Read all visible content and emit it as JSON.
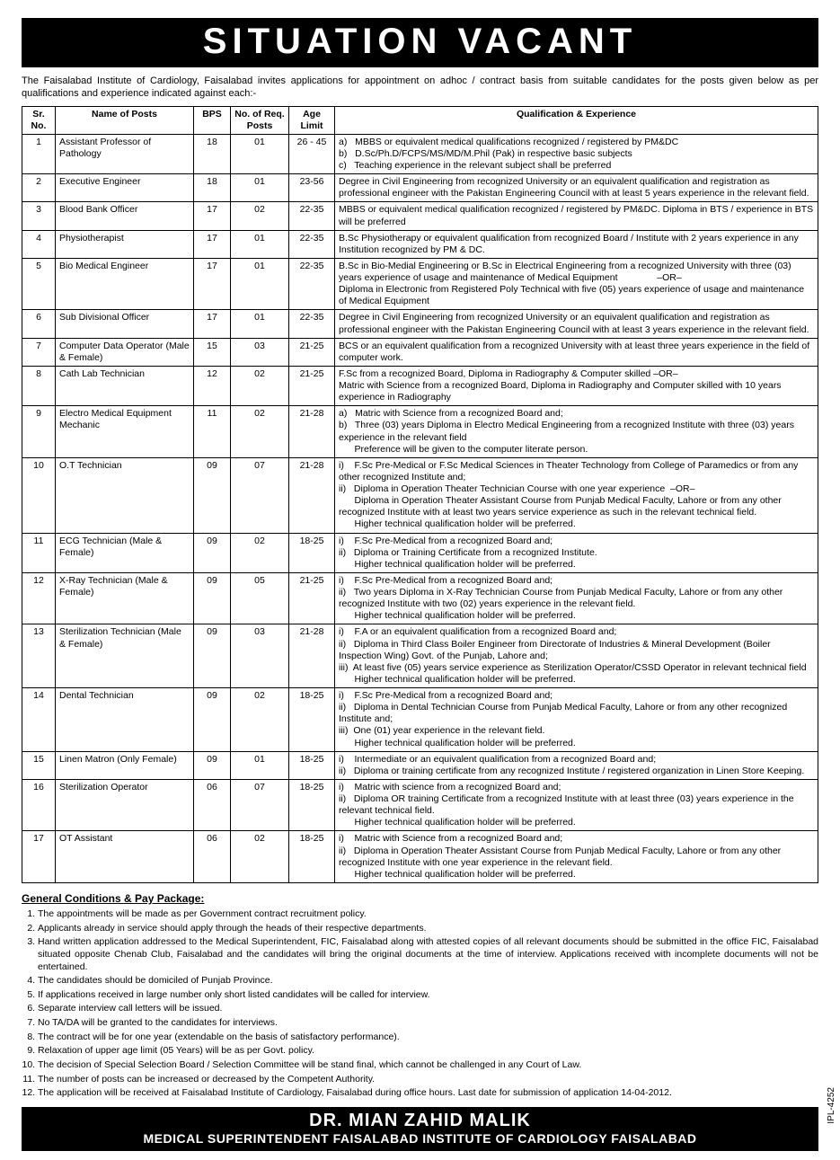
{
  "title": "SITUATION VACANT",
  "intro": "The Faisalabad Institute of Cardiology, Faisalabad invites applications for appointment on adhoc / contract basis from suitable candidates for the posts given below as per qualifications and experience indicated against each:-",
  "headers": {
    "sr": "Sr. No.",
    "name": "Name of Posts",
    "bps": "BPS",
    "req": "No. of Req. Posts",
    "age": "Age Limit",
    "qual": "Qualification & Experience"
  },
  "rows": [
    {
      "sr": "1",
      "name": "Assistant Professor of Pathology",
      "bps": "18",
      "req": "01",
      "age": "26 - 45",
      "qual": "a)   MBBS or equivalent medical qualifications recognized / registered by PM&DC\nb)   D.Sc/Ph.D/FCPS/MS/MD/M.Phil (Pak) in respective basic subjects\nc)   Teaching experience in the relevant subject shall be preferred"
    },
    {
      "sr": "2",
      "name": "Executive Engineer",
      "bps": "18",
      "req": "01",
      "age": "23-56",
      "qual": "Degree in Civil Engineering from recognized University or an equivalent qualification and registration as professional engineer with the Pakistan Engineering Council with at least 5 years experience in the relevant field."
    },
    {
      "sr": "3",
      "name": "Blood Bank Officer",
      "bps": "17",
      "req": "02",
      "age": "22-35",
      "qual": "MBBS or equivalent medical qualification recognized / registered by PM&DC. Diploma in BTS / experience in BTS will be preferred"
    },
    {
      "sr": "4",
      "name": "Physiotherapist",
      "bps": "17",
      "req": "01",
      "age": "22-35",
      "qual": "B.Sc Physiotherapy or equivalent qualification from recognized Board / Institute with 2 years experience in any Institution recognized by PM & DC."
    },
    {
      "sr": "5",
      "name": "Bio Medical Engineer",
      "bps": "17",
      "req": "01",
      "age": "22-35",
      "qual": "B.Sc in Bio-Medial Engineering or B.Sc in Electrical Engineering from a recognized University with three (03) years experience of usage and maintenance of Medical Equipment               –OR–\nDiploma in Electronic from Registered Poly Technical with five (05) years experience of usage and maintenance of Medical Equipment"
    },
    {
      "sr": "6",
      "name": "Sub Divisional Officer",
      "bps": "17",
      "req": "01",
      "age": "22-35",
      "qual": "Degree in Civil Engineering from recognized University or an equivalent qualification and registration as professional engineer with the Pakistan Engineering Council with at least 3 years experience in the relevant field."
    },
    {
      "sr": "7",
      "name": "Computer Data Operator (Male & Female)",
      "bps": "15",
      "req": "03",
      "age": "21-25",
      "qual": "BCS or an equivalent qualification from a recognized University with at least three years experience in the field of computer work."
    },
    {
      "sr": "8",
      "name": "Cath Lab Technician",
      "bps": "12",
      "req": "02",
      "age": "21-25",
      "qual": "F.Sc from a recognized Board, Diploma in Radiography & Computer skilled –OR–\nMatric with Science from a recognized Board, Diploma in Radiography and Computer skilled with 10 years experience in Radiography"
    },
    {
      "sr": "9",
      "name": "Electro Medical Equipment Mechanic",
      "bps": "11",
      "req": "02",
      "age": "21-28",
      "qual": "a)   Matric with Science from a recognized Board and;\nb)   Three (03) years Diploma in Electro Medical Engineering from a recognized Institute with three (03) years experience in the relevant field\n      Preference will be given to the computer literate person."
    },
    {
      "sr": "10",
      "name": "O.T Technician",
      "bps": "09",
      "req": "07",
      "age": "21-28",
      "qual": "i)    F.Sc Pre-Medical or F.Sc Medical Sciences in Theater Technology from College of Paramedics or from any other recognized Institute and;\nii)   Diploma in Operation Theater Technician Course with one year experience  –OR–\n      Diploma in Operation Theater Assistant Course from Punjab Medical Faculty, Lahore or from any other recognized Institute with at least two years service experience as such in the relevant technical field.\n      Higher technical qualification holder will be preferred."
    },
    {
      "sr": "11",
      "name": "ECG Technician (Male & Female)",
      "bps": "09",
      "req": "02",
      "age": "18-25",
      "qual": "i)    F.Sc Pre-Medical from a recognized Board and;\nii)   Diploma or Training Certificate from a recognized Institute.\n      Higher technical qualification holder will be preferred."
    },
    {
      "sr": "12",
      "name": "X-Ray Technician (Male & Female)",
      "bps": "09",
      "req": "05",
      "age": "21-25",
      "qual": "i)    F.Sc Pre-Medical from a recognized Board and;\nii)   Two years Diploma in X-Ray Technician Course from Punjab Medical Faculty, Lahore or from any other recognized Institute with two (02) years experience in the relevant field.\n      Higher technical qualification holder will be preferred."
    },
    {
      "sr": "13",
      "name": "Sterilization Technician (Male & Female)",
      "bps": "09",
      "req": "03",
      "age": "21-28",
      "qual": "i)    F.A or an equivalent qualification from a recognized Board and;\nii)   Diploma in Third Class Boiler Engineer from Directorate of Industries & Mineral Development (Boiler Inspection Wing) Govt. of the Punjab, Lahore and;\niii)  At least five (05) years service experience as Sterilization Operator/CSSD Operator in relevant technical field\n      Higher technical qualification holder will be preferred."
    },
    {
      "sr": "14",
      "name": "Dental Technician",
      "bps": "09",
      "req": "02",
      "age": "18-25",
      "qual": "i)    F.Sc Pre-Medical from a recognized Board and;\nii)   Diploma in Dental Technician Course from Punjab Medical Faculty, Lahore or from any other recognized Institute and;\niii)  One (01) year experience in the relevant field.\n      Higher technical qualification holder will be preferred."
    },
    {
      "sr": "15",
      "name": "Linen Matron (Only Female)",
      "bps": "09",
      "req": "01",
      "age": "18-25",
      "qual": "i)    Intermediate or an equivalent qualification from a recognized Board and;\nii)   Diploma or training certificate from any recognized Institute / registered organization in Linen Store Keeping."
    },
    {
      "sr": "16",
      "name": "Sterilization Operator",
      "bps": "06",
      "req": "07",
      "age": "18-25",
      "qual": "i)    Matric with science from a recognized Board and;\nii)   Diploma OR training Certificate from a recognized Institute with at least three (03) years experience in the relevant technical field.\n      Higher technical qualification holder will be preferred."
    },
    {
      "sr": "17",
      "name": "OT Assistant",
      "bps": "06",
      "req": "02",
      "age": "18-25",
      "qual": "i)    Matric with Science from a recognized Board and;\nii)   Diploma in Operation Theater Assistant Course from Punjab Medical Faculty, Lahore or from any other recognized Institute with one year experience in the relevant field.\n      Higher technical qualification holder will be preferred."
    }
  ],
  "conditions_title": "General Conditions & Pay Package:",
  "conditions": [
    "The appointments will be made as per Government contract recruitment policy.",
    "Applicants already in service should apply through the heads of their respective departments.",
    "Hand written application addressed to the Medical Superintendent, FIC, Faisalabad along with attested copies of all relevant documents should be submitted in the office FIC, Faisalabad situated opposite Chenab Club, Faisalabad and the candidates will bring the original documents at the time of interview. Applications received with incomplete documents will not be entertained.",
    "The candidates should be domiciled of Punjab Province.",
    "If applications received in large number only short listed candidates will be called for interview.",
    "Separate interview call letters will be issued.",
    "No TA/DA will be granted to the candidates for interviews.",
    "The contract will be for one year (extendable on the basis of satisfactory performance).",
    "Relaxation of upper age limit (05 Years) will be as per Govt. policy.",
    "The decision of Special Selection Board / Selection Committee will be stand final, which cannot be challenged in any Court of Law.",
    "The number of posts can be increased or decreased by the Competent Authority.",
    "The application will be received at Faisalabad Institute of Cardiology, Faisalabad during office hours. Last date for submission of application 14-04-2012."
  ],
  "footer": {
    "name": "DR. MIAN ZAHID MALIK",
    "title": "MEDICAL SUPERINTENDENT FAISALABAD INSTITUTE OF CARDIOLOGY FAISALABAD"
  },
  "ipl": "IPL-4252"
}
